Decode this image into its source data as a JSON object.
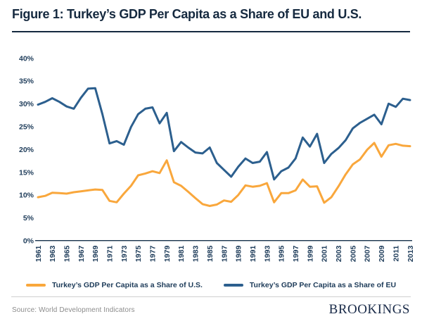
{
  "header": {
    "title": "Figure 1: Turkey’s GDP Per Capita as a Share of EU and U.S."
  },
  "chart_data": {
    "type": "line",
    "title": "Figure 1: Turkey’s GDP Per Capita as a Share of EU and U.S.",
    "xlabel": "",
    "ylabel": "",
    "ylim": [
      0,
      40
    ],
    "ytick_step": 5,
    "ytick_labels": [
      "0%",
      "5%",
      "10%",
      "15%",
      "20%",
      "25%",
      "30%",
      "35%",
      "40%"
    ],
    "xtick_labels": [
      "1961",
      "1963",
      "1965",
      "1967",
      "1969",
      "1971",
      "1973",
      "1975",
      "1977",
      "1979",
      "1981",
      "1983",
      "1985",
      "1987",
      "1989",
      "1991",
      "1993",
      "1995",
      "1997",
      "1999",
      "2001",
      "2003",
      "2005",
      "2007",
      "2009",
      "2011",
      "2013"
    ],
    "grid": false,
    "legend_position": "bottom",
    "axis_color": "#16304a",
    "x": [
      1961,
      1962,
      1963,
      1964,
      1965,
      1966,
      1967,
      1968,
      1969,
      1970,
      1971,
      1972,
      1973,
      1974,
      1975,
      1976,
      1977,
      1978,
      1979,
      1980,
      1981,
      1982,
      1983,
      1984,
      1985,
      1986,
      1987,
      1988,
      1989,
      1990,
      1991,
      1992,
      1993,
      1994,
      1995,
      1996,
      1997,
      1998,
      1999,
      2000,
      2001,
      2002,
      2003,
      2004,
      2005,
      2006,
      2007,
      2008,
      2009,
      2010,
      2011,
      2012,
      2013
    ],
    "series": [
      {
        "id": "us-line",
        "name": "Turkey’s GDP Per Capita as a Share of U.S.",
        "color": "#F9A73C",
        "values": [
          9.5,
          9.8,
          10.5,
          10.4,
          10.3,
          10.6,
          10.8,
          11.0,
          11.2,
          11.1,
          8.7,
          8.4,
          10.3,
          12.0,
          14.3,
          14.7,
          15.2,
          14.8,
          17.6,
          12.8,
          12.0,
          10.7,
          9.3,
          8.0,
          7.6,
          7.9,
          8.8,
          8.5,
          10.0,
          12.1,
          11.8,
          12.0,
          12.6,
          8.4,
          10.4,
          10.4,
          11.0,
          13.4,
          11.8,
          11.9,
          8.3,
          9.5,
          11.9,
          14.5,
          16.7,
          17.8,
          19.9,
          21.4,
          18.4,
          20.9,
          21.2,
          20.8,
          20.7
        ]
      },
      {
        "id": "eu-line",
        "name": "Turkey’s GDP Per Capita as a Share of EU",
        "color": "#2C5F8E",
        "values": [
          29.8,
          30.4,
          31.2,
          30.4,
          29.4,
          28.9,
          31.3,
          33.3,
          33.4,
          27.7,
          21.3,
          21.8,
          21.0,
          24.9,
          27.7,
          28.9,
          29.2,
          25.7,
          28.0,
          19.6,
          21.6,
          20.4,
          19.3,
          19.1,
          20.4,
          17.0,
          15.5,
          14.0,
          16.2,
          18.0,
          17.0,
          17.3,
          19.4,
          13.4,
          15.2,
          16.0,
          18.0,
          22.6,
          20.6,
          23.4,
          17.0,
          19.0,
          20.3,
          22.0,
          24.6,
          25.8,
          26.7,
          27.6,
          25.5,
          30.0,
          29.3,
          31.1,
          30.8
        ]
      }
    ]
  },
  "legend": {
    "items": [
      {
        "label": "Turkey’s GDP Per Capita as a Share of U.S.",
        "color": "#F9A73C"
      },
      {
        "label": "Turkey’s GDP Per Capita as a Share of EU",
        "color": "#2C5F8E"
      }
    ]
  },
  "footer": {
    "source": "Source: World Development Indicators",
    "brand": "BROOKINGS"
  }
}
